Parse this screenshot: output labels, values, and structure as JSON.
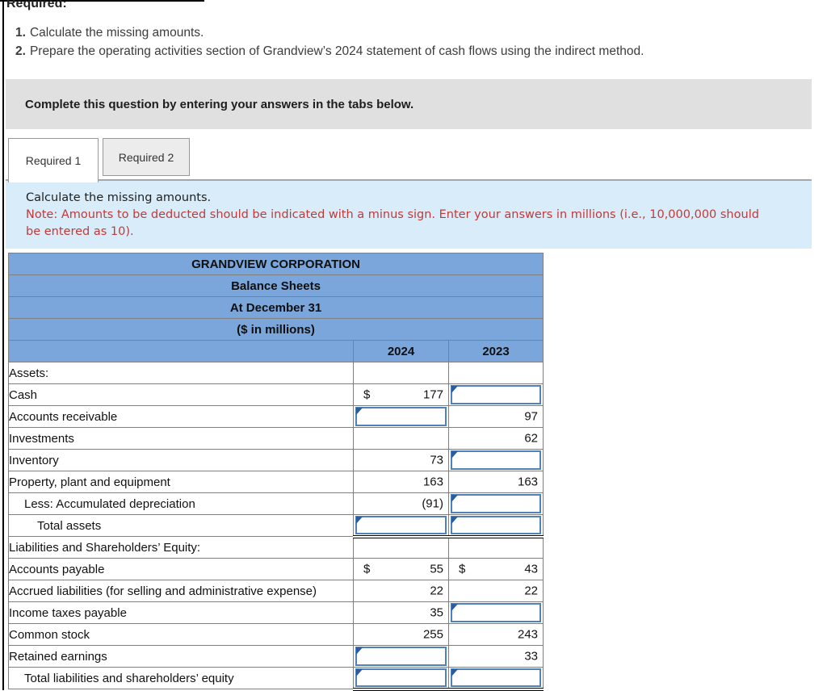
{
  "header": {
    "required_label": "Required:",
    "items": [
      {
        "num": "1.",
        "text": "Calculate the missing amounts."
      },
      {
        "num": "2.",
        "text": "Prepare the operating activities section of Grandview’s 2024 statement of cash flows using the indirect method."
      }
    ],
    "banner": "Complete this question by entering your answers in the tabs below."
  },
  "tabs": [
    {
      "label": "Required 1",
      "active": true
    },
    {
      "label": "Required 2",
      "active": false
    }
  ],
  "instructions": {
    "line1": "Calculate the missing amounts.",
    "note_lines": [
      "Note: Amounts to be deducted should be indicated with a minus sign. Enter your answers in millions (i.e., 10,000,000 should",
      "be entered as 10)."
    ]
  },
  "colors": {
    "header_blue": "#7aa6dc",
    "note_bg": "#d9ecf9",
    "note_red": "#c03a3a",
    "banner_gray": "#e0e0e0",
    "input_border": "#4f81bd",
    "input_flag": "#2b5c9d",
    "grid_border": "#7f7f7f"
  },
  "table": {
    "titles": [
      "GRANDVIEW CORPORATION",
      "Balance Sheets",
      "At December 31",
      "($ in millions)"
    ],
    "year_columns": [
      "2024",
      "2023"
    ],
    "rows": [
      {
        "label": "Assets:",
        "indent": 0,
        "total": false,
        "cells": [
          {
            "type": "blank"
          },
          {
            "type": "blank"
          }
        ]
      },
      {
        "label": "Cash",
        "indent": 0,
        "total": false,
        "cells": [
          {
            "type": "value",
            "prefix": "$",
            "value": "177"
          },
          {
            "type": "input",
            "value": ""
          }
        ]
      },
      {
        "label": "Accounts receivable",
        "indent": 0,
        "total": false,
        "cells": [
          {
            "type": "input",
            "value": ""
          },
          {
            "type": "value",
            "value": "97"
          }
        ]
      },
      {
        "label": "Investments",
        "indent": 0,
        "total": false,
        "cells": [
          {
            "type": "blank"
          },
          {
            "type": "value",
            "value": "62"
          }
        ]
      },
      {
        "label": "Inventory",
        "indent": 0,
        "total": false,
        "cells": [
          {
            "type": "value",
            "value": "73"
          },
          {
            "type": "input",
            "value": ""
          }
        ]
      },
      {
        "label": "Property, plant and equipment",
        "indent": 0,
        "total": false,
        "cells": [
          {
            "type": "value",
            "value": "163"
          },
          {
            "type": "value",
            "value": "163"
          }
        ]
      },
      {
        "label": "Less: Accumulated depreciation",
        "indent": 1,
        "total": false,
        "cells": [
          {
            "type": "value",
            "value": "(91)"
          },
          {
            "type": "input",
            "value": ""
          }
        ]
      },
      {
        "label": "Total assets",
        "indent": 2,
        "total": true,
        "cells": [
          {
            "type": "input",
            "value": ""
          },
          {
            "type": "input",
            "value": ""
          }
        ]
      },
      {
        "label": "Liabilities and Shareholders’ Equity:",
        "indent": 0,
        "total": false,
        "cells": [
          {
            "type": "blank"
          },
          {
            "type": "blank"
          }
        ]
      },
      {
        "label": "Accounts payable",
        "indent": 0,
        "total": false,
        "cells": [
          {
            "type": "value",
            "prefix": "$",
            "value": "55"
          },
          {
            "type": "value",
            "prefix": "$",
            "value": "43"
          }
        ]
      },
      {
        "label": "Accrued liabilities (for selling and administrative expense)",
        "indent": 0,
        "total": false,
        "cells": [
          {
            "type": "value",
            "value": "22"
          },
          {
            "type": "value",
            "value": "22"
          }
        ]
      },
      {
        "label": "Income taxes payable",
        "indent": 0,
        "total": false,
        "cells": [
          {
            "type": "value",
            "value": "35"
          },
          {
            "type": "input",
            "value": ""
          }
        ]
      },
      {
        "label": "Common stock",
        "indent": 0,
        "total": false,
        "cells": [
          {
            "type": "value",
            "value": "255"
          },
          {
            "type": "value",
            "value": "243"
          }
        ]
      },
      {
        "label": "Retained earnings",
        "indent": 0,
        "total": false,
        "cells": [
          {
            "type": "input",
            "value": ""
          },
          {
            "type": "value",
            "value": "33"
          }
        ]
      },
      {
        "label": "Total liabilities and shareholders’ equity",
        "indent": 1,
        "total": true,
        "cells": [
          {
            "type": "input",
            "value": ""
          },
          {
            "type": "input",
            "value": ""
          }
        ]
      }
    ]
  }
}
